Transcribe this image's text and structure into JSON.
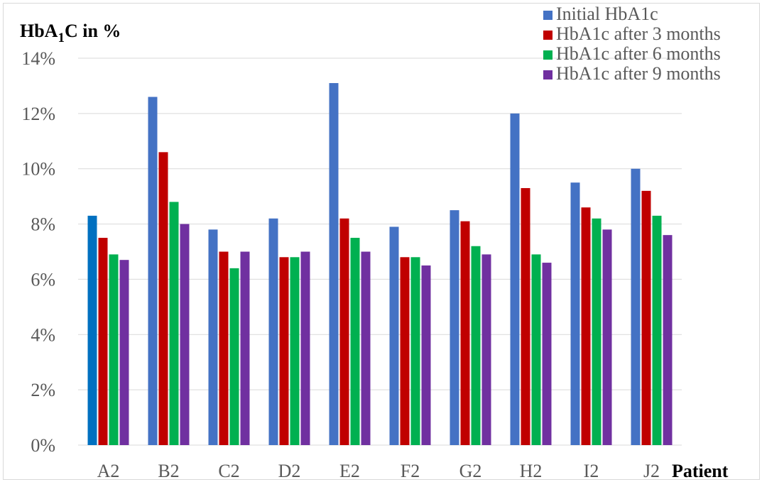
{
  "chart_data": {
    "type": "bar",
    "ylabel_main": "HbA",
    "ylabel_sub": "1",
    "ylabel_rest": "C in %",
    "xlabel": "Patient",
    "categories": [
      "A2",
      "B2",
      "C2",
      "D2",
      "E2",
      "F2",
      "G2",
      "H2",
      "I2",
      "J2"
    ],
    "ylim": [
      0,
      14
    ],
    "yticks": [
      0,
      2,
      4,
      6,
      8,
      10,
      12,
      14
    ],
    "ytick_labels": [
      "0%",
      "2%",
      "4%",
      "6%",
      "8%",
      "10%",
      "12%",
      "14%"
    ],
    "grid": true,
    "legend_position": "top-right",
    "series": [
      {
        "name": "Initial HbA1c",
        "color": "#4472c4",
        "values": [
          8.3,
          12.6,
          7.8,
          8.2,
          13.1,
          7.9,
          8.5,
          12.0,
          9.5,
          10.0
        ]
      },
      {
        "name": "HbA1c after 3 months",
        "color": "#c00000",
        "values": [
          7.5,
          10.6,
          7.0,
          6.8,
          8.2,
          6.8,
          8.1,
          9.3,
          8.6,
          9.2
        ]
      },
      {
        "name": "HbA1c after 6 months",
        "color": "#00b050",
        "values": [
          6.9,
          8.8,
          6.4,
          6.8,
          7.5,
          6.8,
          7.2,
          6.9,
          8.2,
          8.3
        ]
      },
      {
        "name": "HbA1c after 9 months",
        "color": "#7030a0",
        "values": [
          6.7,
          8.0,
          7.0,
          7.0,
          7.0,
          6.5,
          6.9,
          6.6,
          7.8,
          7.6
        ]
      }
    ],
    "highlight": {
      "category_index": 0,
      "series_index": 0,
      "color": "#0070c0"
    }
  }
}
